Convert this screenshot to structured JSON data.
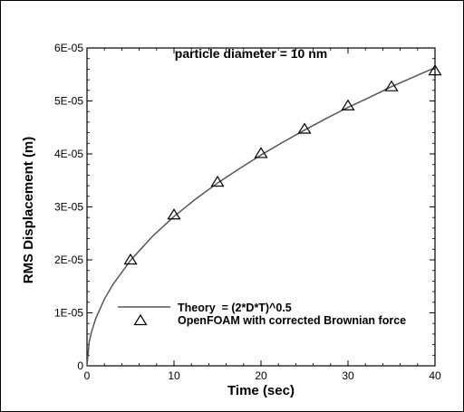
{
  "chart_data": {
    "type": "scatter",
    "annotation": "particle diameter = 10 nm",
    "xlabel": "Time (sec)",
    "ylabel": "RMS Displacement (m)",
    "xlim": [
      0,
      40
    ],
    "ylim": [
      0,
      6e-05
    ],
    "x_ticks": [
      "0",
      "10",
      "20",
      "30",
      "40"
    ],
    "y_ticks": [
      "0",
      "1E-05",
      "2E-05",
      "3E-05",
      "4E-05",
      "5E-05",
      "6E-05"
    ],
    "grid": false,
    "legend_position": "bottom-center",
    "series": [
      {
        "name": "Theory  = (2*D*T)^0.5",
        "kind": "line",
        "color": "#555555",
        "x": [
          0,
          0.25,
          0.5,
          1,
          2,
          3,
          5,
          7.5,
          10,
          12.5,
          15,
          17.5,
          20,
          22.5,
          25,
          27.5,
          30,
          32.5,
          35,
          37.5,
          40
        ],
        "y": [
          0,
          4.5e-06,
          6.3e-06,
          8.9e-06,
          1.26e-05,
          1.54e-05,
          1.99e-05,
          2.44e-05,
          2.82e-05,
          3.15e-05,
          3.45e-05,
          3.72e-05,
          3.98e-05,
          4.22e-05,
          4.45e-05,
          4.67e-05,
          4.88e-05,
          5.07e-05,
          5.27e-05,
          5.45e-05,
          5.63e-05
        ]
      },
      {
        "name": "OpenFOAM with corrected Brownian force",
        "kind": "marker",
        "marker": "open-triangle",
        "color": "#000000",
        "x": [
          5,
          10,
          15,
          20,
          25,
          30,
          35,
          40
        ],
        "y": [
          2e-05,
          2.85e-05,
          3.47e-05,
          4.01e-05,
          4.47e-05,
          4.91e-05,
          5.27e-05,
          5.57e-05
        ]
      }
    ]
  }
}
